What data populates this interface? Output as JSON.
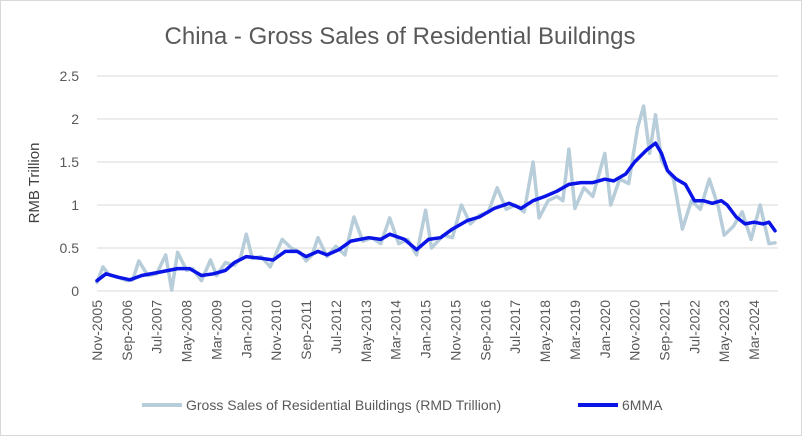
{
  "chart_data": {
    "type": "line",
    "title": "China - Gross Sales of Residential Buildings",
    "ylabel": "RMB Trillion",
    "xlabel": "",
    "ylim": [
      0,
      2.5
    ],
    "yticks": [
      "0",
      "0.5",
      "1",
      "1.5",
      "2",
      "2.5"
    ],
    "x_tick_labels": [
      "Nov-2005",
      "Sep-2006",
      "Jul-2007",
      "May-2008",
      "Mar-2009",
      "Jan-2010",
      "Nov-2010",
      "Sep-2011",
      "Jul-2012",
      "May-2013",
      "Mar-2014",
      "Jan-2015",
      "Nov-2015",
      "Sep-2016",
      "Jul-2017",
      "May-2018",
      "Mar-2019",
      "Jan-2020",
      "Nov-2020",
      "Sep-2021",
      "Jul-2022",
      "May-2023",
      "Mar-2024"
    ],
    "grid": "horizontal",
    "legend_position": "bottom",
    "colors": {
      "raw": "#b7cdd9",
      "ma": "#0a14e6",
      "grid": "#d9d9d9",
      "text": "#595959"
    },
    "series": [
      {
        "name": "Gross Sales of Residential Buildings (RMD Trillion)",
        "points": [
          [
            "2005-11",
            0.1
          ],
          [
            "2006-01",
            0.28
          ],
          [
            "2006-03",
            0.19
          ],
          [
            "2006-06",
            0.16
          ],
          [
            "2006-09",
            0.12
          ],
          [
            "2006-11",
            0.13
          ],
          [
            "2007-01",
            0.35
          ],
          [
            "2007-04",
            0.18
          ],
          [
            "2007-07",
            0.2
          ],
          [
            "2007-10",
            0.42
          ],
          [
            "2007-12",
            0.01
          ],
          [
            "2008-02",
            0.45
          ],
          [
            "2008-05",
            0.24
          ],
          [
            "2008-07",
            0.26
          ],
          [
            "2008-10",
            0.12
          ],
          [
            "2009-01",
            0.36
          ],
          [
            "2009-03",
            0.18
          ],
          [
            "2009-06",
            0.33
          ],
          [
            "2009-09",
            0.3
          ],
          [
            "2009-11",
            0.38
          ],
          [
            "2010-01",
            0.66
          ],
          [
            "2010-03",
            0.38
          ],
          [
            "2010-06",
            0.4
          ],
          [
            "2010-09",
            0.28
          ],
          [
            "2010-11",
            0.44
          ],
          [
            "2011-01",
            0.6
          ],
          [
            "2011-04",
            0.5
          ],
          [
            "2011-07",
            0.45
          ],
          [
            "2011-09",
            0.35
          ],
          [
            "2011-11",
            0.42
          ],
          [
            "2012-01",
            0.62
          ],
          [
            "2012-04",
            0.4
          ],
          [
            "2012-07",
            0.52
          ],
          [
            "2012-10",
            0.42
          ],
          [
            "2013-01",
            0.86
          ],
          [
            "2013-04",
            0.58
          ],
          [
            "2013-07",
            0.62
          ],
          [
            "2013-10",
            0.55
          ],
          [
            "2014-01",
            0.85
          ],
          [
            "2014-04",
            0.55
          ],
          [
            "2014-07",
            0.6
          ],
          [
            "2014-10",
            0.42
          ],
          [
            "2015-01",
            0.94
          ],
          [
            "2015-03",
            0.5
          ],
          [
            "2015-07",
            0.65
          ],
          [
            "2015-10",
            0.62
          ],
          [
            "2016-01",
            1.0
          ],
          [
            "2016-04",
            0.78
          ],
          [
            "2016-07",
            0.88
          ],
          [
            "2016-10",
            0.92
          ],
          [
            "2017-01",
            1.2
          ],
          [
            "2017-04",
            0.95
          ],
          [
            "2017-07",
            1.0
          ],
          [
            "2017-10",
            0.92
          ],
          [
            "2018-01",
            1.5
          ],
          [
            "2018-03",
            0.85
          ],
          [
            "2018-06",
            1.05
          ],
          [
            "2018-09",
            1.1
          ],
          [
            "2018-11",
            1.05
          ],
          [
            "2019-01",
            1.65
          ],
          [
            "2019-03",
            0.96
          ],
          [
            "2019-06",
            1.2
          ],
          [
            "2019-09",
            1.1
          ],
          [
            "2020-01",
            1.6
          ],
          [
            "2020-03",
            1.0
          ],
          [
            "2020-06",
            1.3
          ],
          [
            "2020-09",
            1.25
          ],
          [
            "2020-12",
            1.9
          ],
          [
            "2021-02",
            2.15
          ],
          [
            "2021-04",
            1.6
          ],
          [
            "2021-06",
            2.05
          ],
          [
            "2021-08",
            1.52
          ],
          [
            "2021-10",
            1.4
          ],
          [
            "2021-12",
            1.3
          ],
          [
            "2022-03",
            0.72
          ],
          [
            "2022-06",
            1.05
          ],
          [
            "2022-09",
            0.95
          ],
          [
            "2022-12",
            1.3
          ],
          [
            "2023-03",
            0.98
          ],
          [
            "2023-05",
            0.65
          ],
          [
            "2023-08",
            0.75
          ],
          [
            "2023-11",
            0.92
          ],
          [
            "2024-02",
            0.6
          ],
          [
            "2024-05",
            1.0
          ],
          [
            "2024-08",
            0.55
          ],
          [
            "2024-10",
            0.56
          ]
        ]
      },
      {
        "name": "6MMA",
        "points": [
          [
            "2005-11",
            0.12
          ],
          [
            "2006-02",
            0.2
          ],
          [
            "2006-06",
            0.16
          ],
          [
            "2006-10",
            0.13
          ],
          [
            "2007-02",
            0.18
          ],
          [
            "2007-08",
            0.22
          ],
          [
            "2008-02",
            0.26
          ],
          [
            "2008-06",
            0.26
          ],
          [
            "2008-10",
            0.18
          ],
          [
            "2009-02",
            0.2
          ],
          [
            "2009-06",
            0.24
          ],
          [
            "2009-09",
            0.33
          ],
          [
            "2010-01",
            0.4
          ],
          [
            "2010-06",
            0.38
          ],
          [
            "2010-10",
            0.36
          ],
          [
            "2011-02",
            0.46
          ],
          [
            "2011-06",
            0.46
          ],
          [
            "2011-09",
            0.4
          ],
          [
            "2012-01",
            0.46
          ],
          [
            "2012-04",
            0.42
          ],
          [
            "2012-08",
            0.48
          ],
          [
            "2012-12",
            0.58
          ],
          [
            "2013-06",
            0.62
          ],
          [
            "2013-10",
            0.6
          ],
          [
            "2014-01",
            0.66
          ],
          [
            "2014-06",
            0.6
          ],
          [
            "2014-10",
            0.48
          ],
          [
            "2015-02",
            0.6
          ],
          [
            "2015-06",
            0.62
          ],
          [
            "2015-10",
            0.72
          ],
          [
            "2016-03",
            0.82
          ],
          [
            "2016-07",
            0.86
          ],
          [
            "2016-12",
            0.96
          ],
          [
            "2017-05",
            1.02
          ],
          [
            "2017-09",
            0.96
          ],
          [
            "2018-01",
            1.05
          ],
          [
            "2018-05",
            1.1
          ],
          [
            "2018-09",
            1.16
          ],
          [
            "2019-01",
            1.24
          ],
          [
            "2019-05",
            1.26
          ],
          [
            "2019-09",
            1.26
          ],
          [
            "2020-01",
            1.3
          ],
          [
            "2020-04",
            1.28
          ],
          [
            "2020-08",
            1.36
          ],
          [
            "2020-11",
            1.5
          ],
          [
            "2021-03",
            1.64
          ],
          [
            "2021-06",
            1.72
          ],
          [
            "2021-08",
            1.6
          ],
          [
            "2021-10",
            1.4
          ],
          [
            "2022-01",
            1.3
          ],
          [
            "2022-04",
            1.24
          ],
          [
            "2022-07",
            1.05
          ],
          [
            "2022-10",
            1.05
          ],
          [
            "2023-01",
            1.02
          ],
          [
            "2023-04",
            1.05
          ],
          [
            "2023-06",
            1.0
          ],
          [
            "2023-09",
            0.86
          ],
          [
            "2023-12",
            0.78
          ],
          [
            "2024-03",
            0.8
          ],
          [
            "2024-06",
            0.78
          ],
          [
            "2024-08",
            0.8
          ],
          [
            "2024-10",
            0.7
          ]
        ]
      }
    ]
  }
}
